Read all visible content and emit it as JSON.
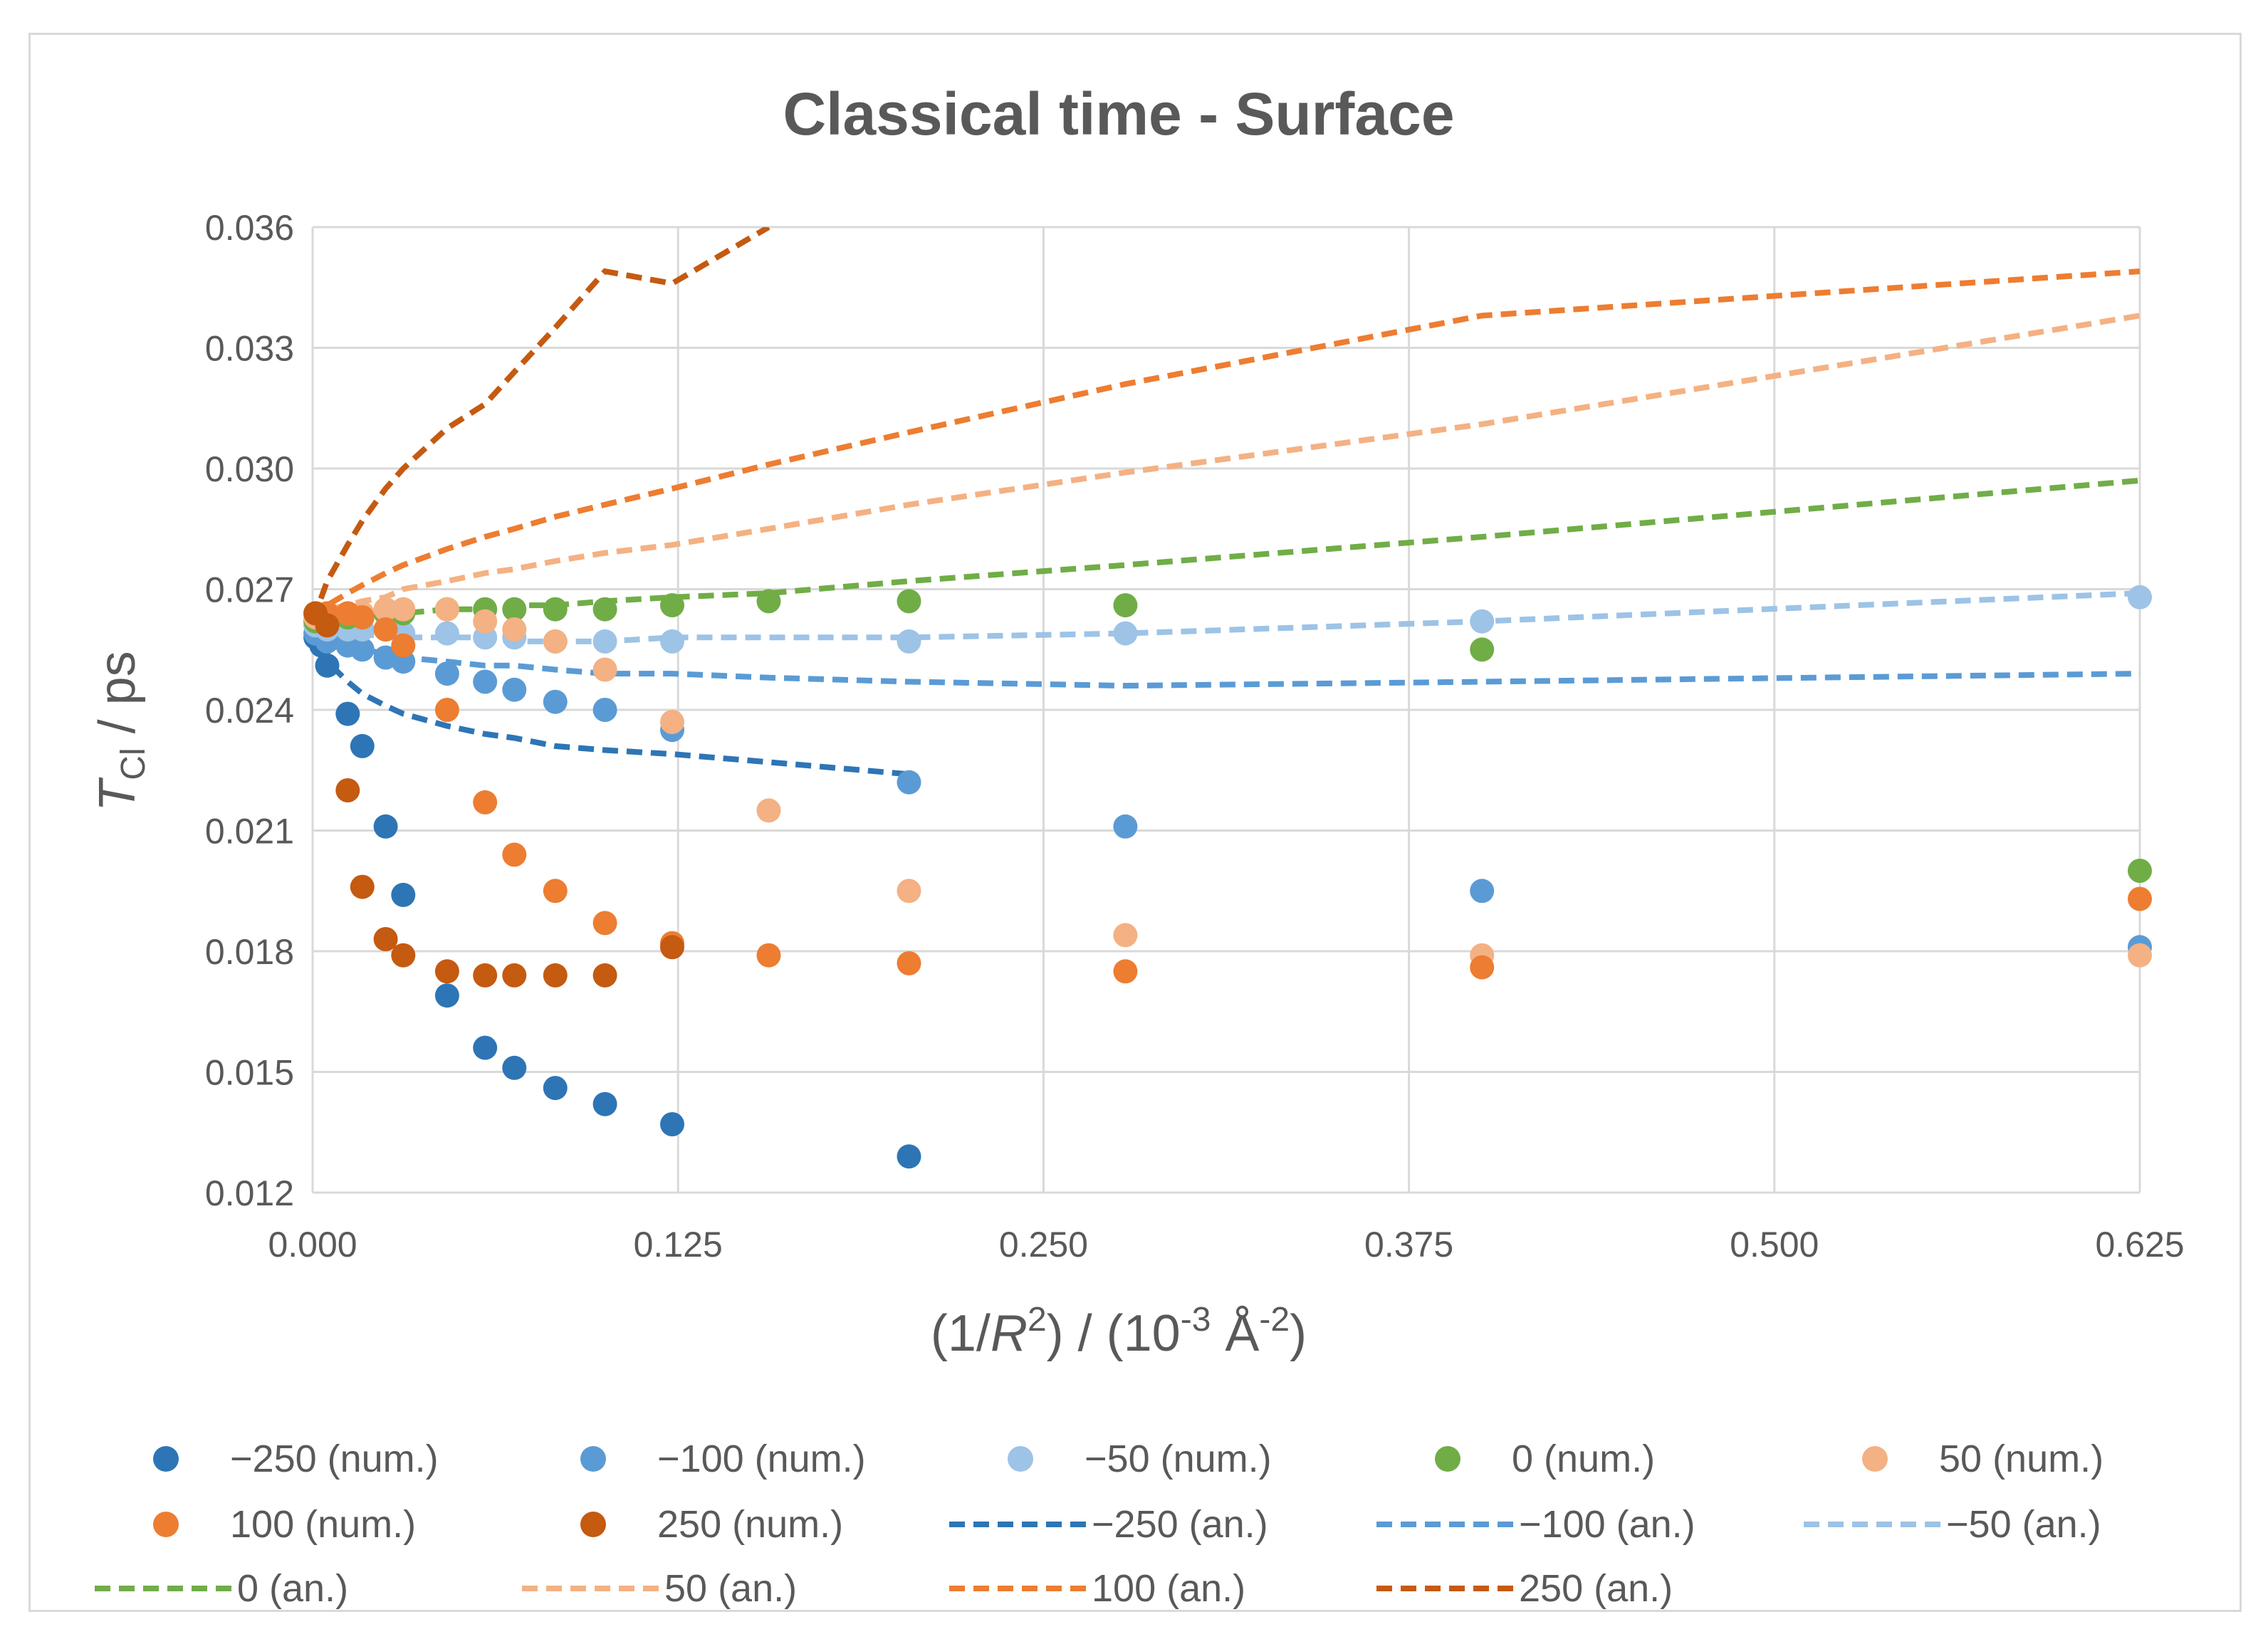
{
  "chart_data": {
    "type": "scatter",
    "title": "Classical time - Surface",
    "ylabel": {
      "main": "T",
      "sub": "Cl",
      "rest": " / ps"
    },
    "xlabel": {
      "p1": "(1/",
      "p2": "R",
      "p3": "2",
      "p4": ") / (10",
      "p5": "-3",
      "p6": " Å",
      "p7": "-2",
      "p8": ")"
    },
    "xlim": [
      0,
      0.625
    ],
    "ylim": [
      0.012,
      0.036
    ],
    "x_ticks": [
      0,
      0.125,
      0.25,
      0.375,
      0.5,
      0.625
    ],
    "x_tick_labels": [
      "0.000",
      "0.125",
      "0.250",
      "0.375",
      "0.500",
      "0.625"
    ],
    "y_ticks": [
      0.012,
      0.015,
      0.018,
      0.021,
      0.024,
      0.027,
      0.03,
      0.033,
      0.036
    ],
    "y_tick_labels": [
      "0.012",
      "0.015",
      "0.018",
      "0.021",
      "0.024",
      "0.027",
      "0.030",
      "0.033",
      "0.036"
    ],
    "grid": true,
    "legend_position": "bottom",
    "series": [
      {
        "name": "−250 (num.)",
        "kind": "marker",
        "color": "#2e75b6",
        "points": [
          [
            0.001,
            0.0258
          ],
          [
            0.003,
            0.0256
          ],
          [
            0.005,
            0.0251
          ],
          [
            0.012,
            0.0239
          ],
          [
            0.017,
            0.0231
          ],
          [
            0.025,
            0.0211
          ],
          [
            0.031,
            0.0194
          ],
          [
            0.046,
            0.0169
          ],
          [
            0.059,
            0.0156
          ],
          [
            0.069,
            0.0151
          ],
          [
            0.083,
            0.0146
          ],
          [
            0.1,
            0.0142
          ],
          [
            0.123,
            0.0137
          ],
          [
            0.204,
            0.0129
          ]
        ]
      },
      {
        "name": "−100 (num.)",
        "kind": "marker",
        "color": "#5b9bd5",
        "points": [
          [
            0.001,
            0.0259
          ],
          [
            0.005,
            0.0257
          ],
          [
            0.012,
            0.0256
          ],
          [
            0.017,
            0.0255
          ],
          [
            0.025,
            0.0253
          ],
          [
            0.031,
            0.0252
          ],
          [
            0.046,
            0.0249
          ],
          [
            0.059,
            0.0247
          ],
          [
            0.069,
            0.0245
          ],
          [
            0.083,
            0.0242
          ],
          [
            0.1,
            0.024
          ],
          [
            0.123,
            0.0235
          ],
          [
            0.204,
            0.0222
          ],
          [
            0.278,
            0.0211
          ],
          [
            0.4,
            0.0195
          ],
          [
            0.625,
            0.0181
          ]
        ]
      },
      {
        "name": "−50 (num.)",
        "kind": "marker",
        "color": "#9dc3e6",
        "points": [
          [
            0.001,
            0.0261
          ],
          [
            0.005,
            0.026
          ],
          [
            0.012,
            0.026
          ],
          [
            0.017,
            0.026
          ],
          [
            0.025,
            0.026
          ],
          [
            0.031,
            0.0259
          ],
          [
            0.046,
            0.0259
          ],
          [
            0.059,
            0.0258
          ],
          [
            0.069,
            0.0258
          ],
          [
            0.083,
            0.0257
          ],
          [
            0.1,
            0.0257
          ],
          [
            0.123,
            0.0257
          ],
          [
            0.204,
            0.0257
          ],
          [
            0.278,
            0.0259
          ],
          [
            0.4,
            0.0262
          ],
          [
            0.625,
            0.0268
          ]
        ]
      },
      {
        "name": "0 (num.)",
        "kind": "marker",
        "color": "#70ad47",
        "points": [
          [
            0.001,
            0.0262
          ],
          [
            0.005,
            0.0262
          ],
          [
            0.012,
            0.0263
          ],
          [
            0.017,
            0.0263
          ],
          [
            0.025,
            0.0264
          ],
          [
            0.031,
            0.0264
          ],
          [
            0.046,
            0.0265
          ],
          [
            0.059,
            0.0265
          ],
          [
            0.069,
            0.0265
          ],
          [
            0.083,
            0.0265
          ],
          [
            0.1,
            0.0265
          ],
          [
            0.123,
            0.0266
          ],
          [
            0.156,
            0.0267
          ],
          [
            0.204,
            0.0267
          ],
          [
            0.278,
            0.0266
          ],
          [
            0.4,
            0.0255
          ],
          [
            0.625,
            0.02
          ]
        ]
      },
      {
        "name": "50 (num.)",
        "kind": "marker",
        "color": "#f4b183",
        "points": [
          [
            0.001,
            0.0263
          ],
          [
            0.005,
            0.0264
          ],
          [
            0.012,
            0.0264
          ],
          [
            0.017,
            0.0264
          ],
          [
            0.025,
            0.0265
          ],
          [
            0.031,
            0.0265
          ],
          [
            0.046,
            0.0265
          ],
          [
            0.059,
            0.0262
          ],
          [
            0.069,
            0.026
          ],
          [
            0.083,
            0.0257
          ],
          [
            0.1,
            0.025
          ],
          [
            0.123,
            0.0237
          ],
          [
            0.156,
            0.0215
          ],
          [
            0.204,
            0.0195
          ],
          [
            0.278,
            0.0184
          ],
          [
            0.4,
            0.0179
          ],
          [
            0.625,
            0.0179
          ]
        ]
      },
      {
        "name": "100 (num.)",
        "kind": "marker",
        "color": "#ed7d31",
        "points": [
          [
            0.001,
            0.0264
          ],
          [
            0.005,
            0.0264
          ],
          [
            0.012,
            0.0264
          ],
          [
            0.017,
            0.0263
          ],
          [
            0.025,
            0.026
          ],
          [
            0.031,
            0.0256
          ],
          [
            0.046,
            0.024
          ],
          [
            0.059,
            0.0217
          ],
          [
            0.069,
            0.0204
          ],
          [
            0.083,
            0.0195
          ],
          [
            0.1,
            0.0187
          ],
          [
            0.123,
            0.0182
          ],
          [
            0.156,
            0.0179
          ],
          [
            0.204,
            0.0177
          ],
          [
            0.278,
            0.0175
          ],
          [
            0.4,
            0.0176
          ],
          [
            0.625,
            0.0193
          ]
        ]
      },
      {
        "name": "250 (num.)",
        "kind": "marker",
        "color": "#c55a11",
        "points": [
          [
            0.001,
            0.0264
          ],
          [
            0.005,
            0.0261
          ],
          [
            0.012,
            0.022
          ],
          [
            0.017,
            0.0196
          ],
          [
            0.025,
            0.0183
          ],
          [
            0.031,
            0.0179
          ],
          [
            0.046,
            0.0175
          ],
          [
            0.059,
            0.0174
          ],
          [
            0.069,
            0.0174
          ],
          [
            0.083,
            0.0174
          ],
          [
            0.1,
            0.0174
          ],
          [
            0.123,
            0.0181
          ]
        ]
      },
      {
        "name": "−250 (an.)",
        "kind": "dash",
        "color": "#2e75b6",
        "points": [
          [
            0,
            0.0262
          ],
          [
            0.005,
            0.0252
          ],
          [
            0.012,
            0.0247
          ],
          [
            0.017,
            0.0244
          ],
          [
            0.025,
            0.0241
          ],
          [
            0.031,
            0.0239
          ],
          [
            0.046,
            0.0236
          ],
          [
            0.059,
            0.0234
          ],
          [
            0.069,
            0.0233
          ],
          [
            0.083,
            0.0231
          ],
          [
            0.1,
            0.023
          ],
          [
            0.123,
            0.0229
          ],
          [
            0.156,
            0.0227
          ],
          [
            0.204,
            0.0224
          ]
        ]
      },
      {
        "name": "−100 (an.)",
        "kind": "dash",
        "color": "#5b9bd5",
        "points": [
          [
            0,
            0.0262
          ],
          [
            0.005,
            0.0257
          ],
          [
            0.012,
            0.0256
          ],
          [
            0.017,
            0.0255
          ],
          [
            0.025,
            0.0254
          ],
          [
            0.031,
            0.0253
          ],
          [
            0.046,
            0.0252
          ],
          [
            0.059,
            0.0251
          ],
          [
            0.069,
            0.0251
          ],
          [
            0.083,
            0.025
          ],
          [
            0.1,
            0.0249
          ],
          [
            0.123,
            0.0249
          ],
          [
            0.156,
            0.0248
          ],
          [
            0.204,
            0.0247
          ],
          [
            0.278,
            0.0246
          ],
          [
            0.4,
            0.0247
          ],
          [
            0.625,
            0.0249
          ]
        ]
      },
      {
        "name": "−50 (an.)",
        "kind": "dash",
        "color": "#9dc3e6",
        "points": [
          [
            0,
            0.0262
          ],
          [
            0.005,
            0.026
          ],
          [
            0.012,
            0.0259
          ],
          [
            0.017,
            0.0259
          ],
          [
            0.025,
            0.0258
          ],
          [
            0.031,
            0.0258
          ],
          [
            0.046,
            0.0258
          ],
          [
            0.059,
            0.0258
          ],
          [
            0.069,
            0.0257
          ],
          [
            0.083,
            0.0257
          ],
          [
            0.1,
            0.0257
          ],
          [
            0.123,
            0.0258
          ],
          [
            0.156,
            0.0258
          ],
          [
            0.204,
            0.0258
          ],
          [
            0.278,
            0.0259
          ],
          [
            0.4,
            0.0262
          ],
          [
            0.625,
            0.0269
          ]
        ]
      },
      {
        "name": "0 (an.)",
        "kind": "dash",
        "color": "#70ad47",
        "points": [
          [
            0,
            0.0262
          ],
          [
            0.005,
            0.0263
          ],
          [
            0.012,
            0.0264
          ],
          [
            0.017,
            0.0264
          ],
          [
            0.025,
            0.0264
          ],
          [
            0.031,
            0.0264
          ],
          [
            0.046,
            0.0265
          ],
          [
            0.059,
            0.0265
          ],
          [
            0.069,
            0.0266
          ],
          [
            0.083,
            0.0266
          ],
          [
            0.1,
            0.0267
          ],
          [
            0.123,
            0.0268
          ],
          [
            0.156,
            0.0269
          ],
          [
            0.204,
            0.0272
          ],
          [
            0.278,
            0.0276
          ],
          [
            0.4,
            0.0283
          ],
          [
            0.625,
            0.0297
          ]
        ]
      },
      {
        "name": "50 (an.)",
        "kind": "dash",
        "color": "#f4b183",
        "points": [
          [
            0,
            0.0262
          ],
          [
            0.005,
            0.0265
          ],
          [
            0.012,
            0.0266
          ],
          [
            0.017,
            0.0267
          ],
          [
            0.025,
            0.0268
          ],
          [
            0.031,
            0.027
          ],
          [
            0.046,
            0.0272
          ],
          [
            0.059,
            0.0274
          ],
          [
            0.069,
            0.0275
          ],
          [
            0.083,
            0.0277
          ],
          [
            0.1,
            0.0279
          ],
          [
            0.123,
            0.0281
          ],
          [
            0.156,
            0.0285
          ],
          [
            0.204,
            0.0291
          ],
          [
            0.278,
            0.0299
          ],
          [
            0.4,
            0.0311
          ],
          [
            0.625,
            0.0338
          ]
        ]
      },
      {
        "name": "100 (an.)",
        "kind": "dash",
        "color": "#ed7d31",
        "points": [
          [
            0,
            0.0262
          ],
          [
            0.005,
            0.0266
          ],
          [
            0.012,
            0.0269
          ],
          [
            0.017,
            0.0271
          ],
          [
            0.025,
            0.0274
          ],
          [
            0.031,
            0.0276
          ],
          [
            0.046,
            0.028
          ],
          [
            0.059,
            0.0283
          ],
          [
            0.069,
            0.0285
          ],
          [
            0.083,
            0.0288
          ],
          [
            0.1,
            0.0291
          ],
          [
            0.123,
            0.0295
          ],
          [
            0.156,
            0.0301
          ],
          [
            0.204,
            0.0309
          ],
          [
            0.278,
            0.0321
          ],
          [
            0.4,
            0.0338
          ],
          [
            0.625,
            0.0349
          ]
        ]
      },
      {
        "name": "250 (an.)",
        "kind": "dash",
        "color": "#c55a11",
        "points": [
          [
            0,
            0.0262
          ],
          [
            0.005,
            0.0272
          ],
          [
            0.012,
            0.0281
          ],
          [
            0.017,
            0.0287
          ],
          [
            0.025,
            0.0295
          ],
          [
            0.031,
            0.03
          ],
          [
            0.046,
            0.031
          ],
          [
            0.059,
            0.0316
          ],
          [
            0.069,
            0.0324
          ],
          [
            0.083,
            0.0335
          ],
          [
            0.1,
            0.0349
          ],
          [
            0.123,
            0.0346
          ],
          [
            0.156,
            0.036
          ]
        ]
      }
    ]
  }
}
